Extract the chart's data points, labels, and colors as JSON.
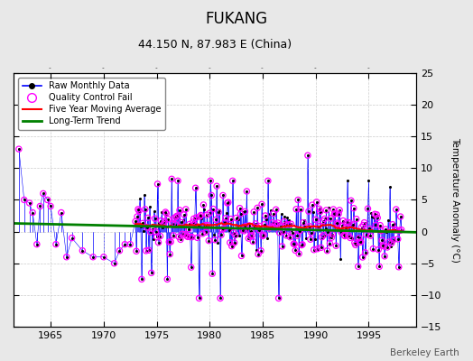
{
  "title": "FUKANG",
  "subtitle": "44.150 N, 87.983 E (China)",
  "ylabel": "Temperature Anomaly (°C)",
  "credit": "Berkeley Earth",
  "xlim": [
    1961.5,
    1999.5
  ],
  "ylim": [
    -15,
    25
  ],
  "yticks": [
    -15,
    -10,
    -5,
    0,
    5,
    10,
    15,
    20,
    25
  ],
  "xticks": [
    1965,
    1970,
    1975,
    1980,
    1985,
    1990,
    1995
  ],
  "plot_bg": "#ffffff",
  "fig_bg": "#e8e8e8",
  "grid_color": "#cccccc",
  "raw_line_color": "blue",
  "raw_marker_color": "black",
  "qc_fail_color": "magenta",
  "moving_avg_color": "red",
  "trend_color": "green",
  "seed": 17
}
